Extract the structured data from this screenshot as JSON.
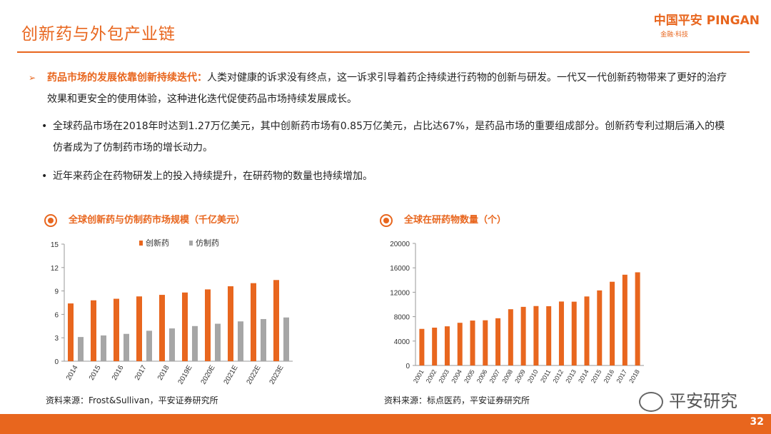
{
  "header": {
    "title": "创新药与外包产业链",
    "logo_main": "中国平安 PINGAN",
    "logo_sub": "金融·科技"
  },
  "intro": {
    "arrow": "➢",
    "lead": "药品市场的发展依靠创新持续迭代：",
    "text": "人类对健康的诉求没有终点，这一诉求引导着药企持续进行药物的创新与研发。一代又一代创新药物带来了更好的治疗效果和更安全的使用体验，这种进化迭代促使药品市场持续发展成长。"
  },
  "bullets": [
    "全球药品市场在2018年时达到1.27万亿美元，其中创新药市场有0.85万亿美元，占比达67%，是药品市场的重要组成部分。创新药专利过期后涌入的模仿者成为了仿制药市场的增长动力。",
    "近年来药企在药物研发上的投入持续提升，在研药物的数量也持续增加。"
  ],
  "bullet_symbol": "•",
  "chart1": {
    "heading": "全球创新药与仿制药市场规模（千亿美元）",
    "source": "资料来源：Frost&Sullivan，平安证券研究所"
  },
  "chart2": {
    "heading": "全球在研药物数量（个）",
    "source": "资料来源：标点医药，平安证券研究所"
  },
  "chart_data": [
    {
      "type": "bar",
      "title": "全球创新药与仿制药市场规模（千亿美元）",
      "categories": [
        "2014",
        "2015",
        "2016",
        "2017",
        "2018",
        "2019E",
        "2020E",
        "2021E",
        "2022E",
        "2023E"
      ],
      "series": [
        {
          "name": "创新药",
          "color": "#e8661e",
          "values": [
            7.4,
            7.8,
            8.0,
            8.3,
            8.5,
            8.8,
            9.2,
            9.6,
            10.0,
            10.4
          ]
        },
        {
          "name": "仿制药",
          "color": "#a6a6a6",
          "values": [
            3.1,
            3.3,
            3.5,
            3.9,
            4.2,
            4.5,
            4.8,
            5.1,
            5.4,
            5.6
          ]
        }
      ],
      "ylim": [
        0,
        15
      ],
      "yticks": [
        0,
        3,
        6,
        9,
        12,
        15
      ],
      "legend": "top"
    },
    {
      "type": "bar",
      "title": "全球在研药物数量（个）",
      "categories": [
        "2001",
        "2002",
        "2003",
        "2004",
        "2005",
        "2006",
        "2007",
        "2008",
        "2009",
        "2010",
        "2011",
        "2012",
        "2013",
        "2014",
        "2015",
        "2016",
        "2017",
        "2018"
      ],
      "series": [
        {
          "name": "",
          "color": "#e8661e",
          "values": [
            5995,
            6198,
            6416,
            6994,
            7360,
            7406,
            7737,
            9217,
            9605,
            9737,
            9713,
            10479,
            10452,
            11307,
            12300,
            13718,
            14872,
            15267
          ]
        }
      ],
      "ylim": [
        0,
        20000
      ],
      "yticks": [
        0,
        4000,
        8000,
        12000,
        16000,
        20000
      ]
    }
  ],
  "watermark": "平安研究",
  "page_number": "32"
}
